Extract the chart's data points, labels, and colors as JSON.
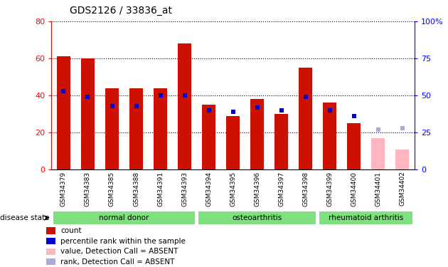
{
  "title": "GDS2126 / 33836_at",
  "samples": [
    "GSM34379",
    "GSM34383",
    "GSM34385",
    "GSM34388",
    "GSM34391",
    "GSM34393",
    "GSM34394",
    "GSM34395",
    "GSM34396",
    "GSM34397",
    "GSM34398",
    "GSM34399",
    "GSM34400",
    "GSM34401",
    "GSM34402"
  ],
  "bar_values": [
    61,
    60,
    44,
    44,
    44,
    68,
    35,
    29,
    38,
    30,
    55,
    36,
    25,
    17,
    11
  ],
  "bar_absent": [
    false,
    false,
    false,
    false,
    false,
    false,
    false,
    false,
    false,
    false,
    false,
    false,
    false,
    true,
    true
  ],
  "rank_values": [
    53,
    49,
    43,
    43,
    50,
    50,
    40,
    39,
    42,
    40,
    49,
    40,
    36,
    27,
    28
  ],
  "rank_absent": [
    false,
    false,
    false,
    false,
    false,
    false,
    false,
    false,
    false,
    false,
    false,
    false,
    false,
    true,
    true
  ],
  "group_ranges": [
    [
      0,
      6,
      "normal donor"
    ],
    [
      6,
      11,
      "osteoarthritis"
    ],
    [
      11,
      15,
      "rheumatoid arthritis"
    ]
  ],
  "group_color": "#7EE07E",
  "bar_color_present": "#CC1100",
  "bar_color_absent": "#FFB6C1",
  "rank_color_present": "#0000CC",
  "rank_color_absent": "#AAAADD",
  "ylim_left": [
    0,
    80
  ],
  "ylim_right": [
    0,
    100
  ],
  "yticks_left": [
    0,
    20,
    40,
    60,
    80
  ],
  "yticks_right": [
    0,
    25,
    50,
    75,
    100
  ],
  "bar_width": 0.55,
  "bg_xtick": "#C8C8C8",
  "title_fontsize": 10,
  "legend": [
    [
      "count",
      "#CC1100"
    ],
    [
      "percentile rank within the sample",
      "#0000CC"
    ],
    [
      "value, Detection Call = ABSENT",
      "#FFB6C1"
    ],
    [
      "rank, Detection Call = ABSENT",
      "#AAAADD"
    ]
  ]
}
